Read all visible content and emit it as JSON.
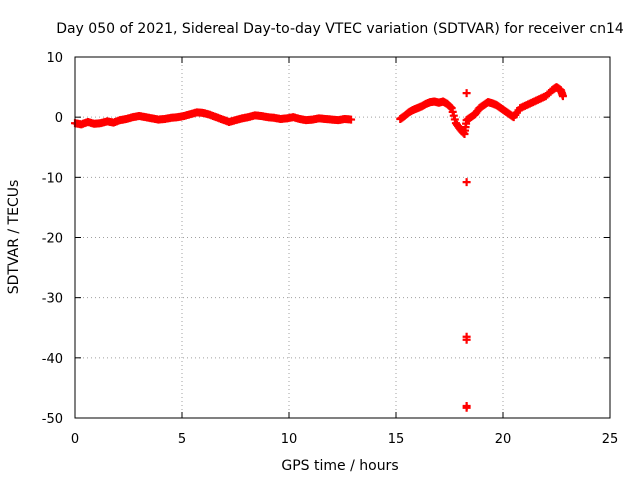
{
  "chart_data": {
    "type": "scatter",
    "title": "Day 050 of 2021, Sidereal Day-to-day VTEC variation (SDTVAR) for receiver cn14",
    "xlabel": "GPS time / hours",
    "ylabel": "SDTVAR / TECUs",
    "xlim": [
      0,
      25
    ],
    "ylim": [
      -50,
      10
    ],
    "xticks": [
      0,
      5,
      10,
      15,
      20,
      25
    ],
    "xtick_labels": [
      "0",
      "5",
      "10",
      "15",
      "20",
      "25"
    ],
    "yticks": [
      10,
      0,
      -10,
      -20,
      -30,
      -40,
      -50
    ],
    "ytick_labels": [
      "10",
      "0",
      "-10",
      "-20",
      "-30",
      "-40",
      "-50"
    ],
    "grid": true,
    "marker": "plus",
    "series_color": "#ff0000",
    "series": [
      {
        "name": "cn14",
        "points": [
          [
            0.0,
            -1.0
          ],
          [
            0.3,
            -1.2
          ],
          [
            0.6,
            -0.8
          ],
          [
            0.9,
            -1.1
          ],
          [
            1.2,
            -1.0
          ],
          [
            1.5,
            -0.7
          ],
          [
            1.8,
            -0.9
          ],
          [
            2.1,
            -0.5
          ],
          [
            2.4,
            -0.3
          ],
          [
            2.7,
            0.0
          ],
          [
            3.0,
            0.2
          ],
          [
            3.3,
            0.0
          ],
          [
            3.6,
            -0.2
          ],
          [
            3.9,
            -0.4
          ],
          [
            4.2,
            -0.3
          ],
          [
            4.5,
            -0.1
          ],
          [
            4.8,
            0.0
          ],
          [
            5.1,
            0.2
          ],
          [
            5.4,
            0.5
          ],
          [
            5.7,
            0.8
          ],
          [
            6.0,
            0.7
          ],
          [
            6.3,
            0.4
          ],
          [
            6.6,
            0.0
          ],
          [
            6.9,
            -0.4
          ],
          [
            7.2,
            -0.8
          ],
          [
            7.5,
            -0.5
          ],
          [
            7.8,
            -0.2
          ],
          [
            8.1,
            0.0
          ],
          [
            8.4,
            0.3
          ],
          [
            8.7,
            0.2
          ],
          [
            9.0,
            0.0
          ],
          [
            9.3,
            -0.1
          ],
          [
            9.6,
            -0.3
          ],
          [
            9.9,
            -0.2
          ],
          [
            10.2,
            0.0
          ],
          [
            10.5,
            -0.3
          ],
          [
            10.8,
            -0.5
          ],
          [
            11.1,
            -0.4
          ],
          [
            11.4,
            -0.2
          ],
          [
            11.7,
            -0.3
          ],
          [
            12.0,
            -0.4
          ],
          [
            12.3,
            -0.5
          ],
          [
            12.6,
            -0.3
          ],
          [
            12.9,
            -0.4
          ],
          [
            15.2,
            -0.3
          ],
          [
            15.4,
            0.2
          ],
          [
            15.6,
            0.8
          ],
          [
            15.8,
            1.2
          ],
          [
            16.0,
            1.5
          ],
          [
            16.2,
            1.8
          ],
          [
            16.4,
            2.2
          ],
          [
            16.6,
            2.5
          ],
          [
            16.8,
            2.6
          ],
          [
            17.0,
            2.4
          ],
          [
            17.2,
            2.6
          ],
          [
            17.4,
            2.2
          ],
          [
            17.6,
            1.5
          ],
          [
            17.8,
            -1.0
          ],
          [
            18.0,
            -2.0
          ],
          [
            18.2,
            -2.8
          ],
          [
            18.3,
            -0.5
          ],
          [
            18.5,
            0.0
          ],
          [
            18.7,
            0.5
          ],
          [
            18.9,
            1.5
          ],
          [
            19.1,
            2.0
          ],
          [
            19.3,
            2.5
          ],
          [
            19.5,
            2.3
          ],
          [
            19.7,
            2.0
          ],
          [
            19.9,
            1.5
          ],
          [
            20.1,
            1.0
          ],
          [
            20.3,
            0.5
          ],
          [
            20.5,
            0.0
          ],
          [
            20.8,
            1.5
          ],
          [
            21.1,
            2.0
          ],
          [
            21.4,
            2.5
          ],
          [
            21.7,
            3.0
          ],
          [
            22.0,
            3.5
          ],
          [
            22.3,
            4.5
          ],
          [
            22.5,
            5.0
          ],
          [
            22.7,
            4.5
          ],
          [
            22.8,
            3.5
          ],
          [
            18.3,
            4.0
          ],
          [
            18.3,
            -10.8
          ],
          [
            18.3,
            -36.5
          ],
          [
            18.3,
            -37.0
          ],
          [
            18.3,
            -48.0
          ],
          [
            18.3,
            -48.3
          ]
        ]
      }
    ]
  }
}
